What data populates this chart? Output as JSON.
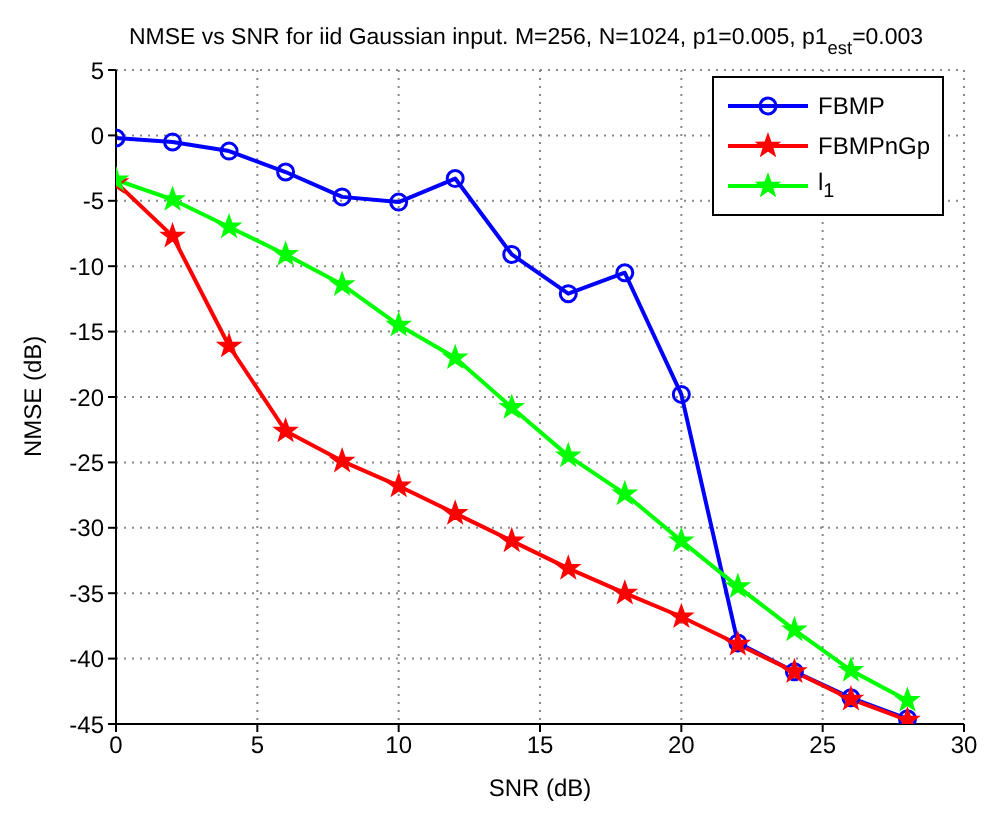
{
  "chart_data": {
    "type": "line",
    "title": "NMSE vs SNR for iid Gaussian input. M=256, N=1024, p1=0.005, p1$_{est}$=0.003",
    "xlabel": "SNR (dB)",
    "ylabel": "NMSE (dB)",
    "x": [
      0,
      2,
      4,
      6,
      8,
      10,
      12,
      14,
      16,
      18,
      20,
      22,
      24,
      26,
      28
    ],
    "series": [
      {
        "name": "FBMP",
        "color": "#0000ff",
        "marker": "circle",
        "values": [
          -0.2,
          -0.5,
          -1.2,
          -2.8,
          -4.7,
          -5.1,
          -3.3,
          -9.1,
          -12.1,
          -10.5,
          -19.8,
          -38.8,
          -41.0,
          -43.0,
          -44.6
        ]
      },
      {
        "name": "FBMPnGp",
        "color": "#ff0000",
        "marker": "star",
        "values": [
          -3.6,
          -7.7,
          -16.1,
          -22.6,
          -24.9,
          -26.8,
          -28.9,
          -31.0,
          -33.1,
          -35.0,
          -36.8,
          -38.9,
          -41.0,
          -43.1,
          -44.7
        ]
      },
      {
        "name": "l$_{1}$",
        "color": "#00ff00",
        "marker": "star",
        "values": [
          -3.4,
          -4.9,
          -7.0,
          -9.1,
          -11.4,
          -14.5,
          -17.0,
          -20.8,
          -24.5,
          -27.4,
          -31.0,
          -34.5,
          -37.8,
          -40.9,
          -43.2
        ]
      }
    ],
    "xlim": [
      0,
      30
    ],
    "xticks": [
      0,
      5,
      10,
      15,
      20,
      25,
      30
    ],
    "ylim": [
      -45,
      5
    ],
    "yticks": [
      -45,
      -40,
      -35,
      -30,
      -25,
      -20,
      -15,
      -10,
      -5,
      0,
      5
    ],
    "grid": true,
    "legend": "top right",
    "line_style": "solid"
  }
}
